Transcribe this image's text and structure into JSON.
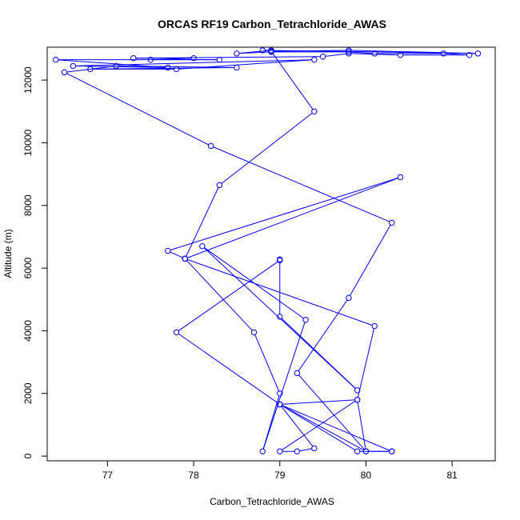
{
  "chart_data": {
    "type": "line",
    "title": "ORCAS RF19 Carbon_Tetrachloride_AWAS",
    "xlabel": "Carbon_Tetrachloride_AWAS",
    "ylabel": "Altitude (m)",
    "xlim": [
      76.3,
      81.5
    ],
    "ylim": [
      -150,
      13050
    ],
    "x_ticks": [
      77,
      78,
      79,
      80,
      81
    ],
    "y_ticks": [
      0,
      2000,
      4000,
      6000,
      8000,
      10000,
      12000
    ],
    "grid": false,
    "line_color": "#0000ff",
    "marker": "open-circle",
    "series": [
      {
        "points": [
          [
            80.3,
            150
          ],
          [
            79.9,
            150
          ],
          [
            79.0,
            1650
          ],
          [
            80.0,
            150
          ],
          [
            80.3,
            150
          ],
          [
            79.0,
            1650
          ],
          [
            79.4,
            250
          ],
          [
            79.2,
            150
          ],
          [
            79.0,
            150
          ],
          [
            79.9,
            1800
          ],
          [
            79.0,
            1650
          ],
          [
            77.8,
            3950
          ],
          [
            79.0,
            6250
          ],
          [
            79.0,
            6280
          ],
          [
            79.0,
            4450
          ],
          [
            79.9,
            2100
          ],
          [
            78.1,
            6700
          ],
          [
            79.3,
            4350
          ],
          [
            78.8,
            150
          ],
          [
            79.0,
            2000
          ],
          [
            78.7,
            3950
          ],
          [
            77.9,
            6300
          ],
          [
            80.1,
            4150
          ],
          [
            79.9,
            1800
          ],
          [
            80.0,
            150
          ],
          [
            79.2,
            2650
          ],
          [
            79.8,
            5050
          ],
          [
            80.3,
            7450
          ],
          [
            78.2,
            9900
          ],
          [
            76.5,
            12250
          ],
          [
            77.1,
            12450
          ],
          [
            78.5,
            12400
          ],
          [
            76.8,
            12350
          ],
          [
            77.8,
            12350
          ],
          [
            79.4,
            12650
          ],
          [
            76.6,
            12450
          ],
          [
            77.7,
            12400
          ],
          [
            76.4,
            12650
          ],
          [
            78.3,
            12650
          ],
          [
            77.5,
            12650
          ],
          [
            78.0,
            12700
          ],
          [
            77.3,
            12700
          ],
          [
            79.5,
            12750
          ],
          [
            79.8,
            12850
          ],
          [
            80.4,
            12800
          ],
          [
            81.2,
            12800
          ],
          [
            80.9,
            12850
          ],
          [
            80.1,
            12850
          ],
          [
            79.8,
            12900
          ],
          [
            78.9,
            12900
          ],
          [
            78.5,
            12850
          ],
          [
            78.9,
            12950
          ],
          [
            78.8,
            12950
          ],
          [
            81.3,
            12850
          ],
          [
            79.8,
            12950
          ],
          [
            78.9,
            12920
          ],
          [
            79.4,
            11000
          ],
          [
            78.3,
            8650
          ],
          [
            77.9,
            6300
          ],
          [
            77.7,
            6550
          ],
          [
            80.4,
            8900
          ],
          [
            77.9,
            6300
          ]
        ]
      }
    ]
  }
}
